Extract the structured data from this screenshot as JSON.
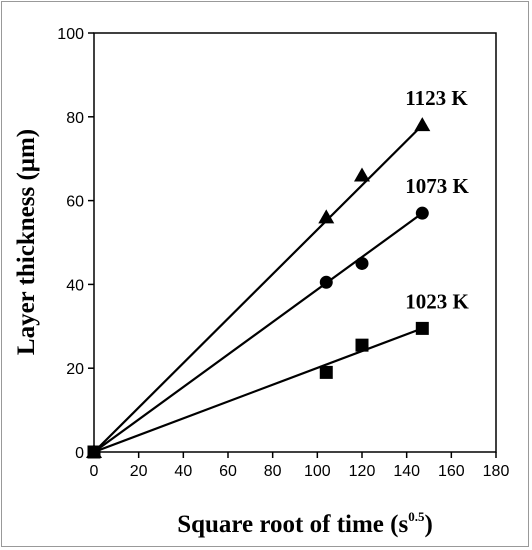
{
  "chart_data": {
    "type": "scatter",
    "title": "",
    "xlabel": "Square root of time (s",
    "xlabel_sup": "0.5",
    "xlabel_tail": ")",
    "ylabel": "Layer thickness (μm)",
    "xlim": [
      0,
      180
    ],
    "ylim": [
      0,
      100
    ],
    "x_ticks": [
      0,
      20,
      40,
      60,
      80,
      100,
      120,
      140,
      160,
      180
    ],
    "y_ticks": [
      0,
      20,
      40,
      60,
      80,
      100
    ],
    "grid": false,
    "legend": "none",
    "series": [
      {
        "name": "1123 K",
        "marker": "triangle",
        "color": "#000000",
        "points": [
          [
            0,
            0
          ],
          [
            104,
            56
          ],
          [
            120,
            66
          ],
          [
            147,
            78
          ]
        ],
        "fit": [
          [
            0,
            0
          ],
          [
            147,
            78
          ]
        ]
      },
      {
        "name": "1073 K",
        "marker": "circle",
        "color": "#000000",
        "points": [
          [
            0,
            0
          ],
          [
            104,
            40.5
          ],
          [
            120,
            45
          ],
          [
            147,
            57
          ]
        ],
        "fit": [
          [
            0,
            0
          ],
          [
            147,
            57
          ]
        ]
      },
      {
        "name": "1023 K",
        "marker": "square",
        "color": "#000000",
        "points": [
          [
            0,
            0
          ],
          [
            104,
            19
          ],
          [
            120,
            25.5
          ],
          [
            147,
            29.5
          ]
        ],
        "fit": [
          [
            0,
            0
          ],
          [
            147,
            29.5
          ]
        ]
      }
    ]
  }
}
